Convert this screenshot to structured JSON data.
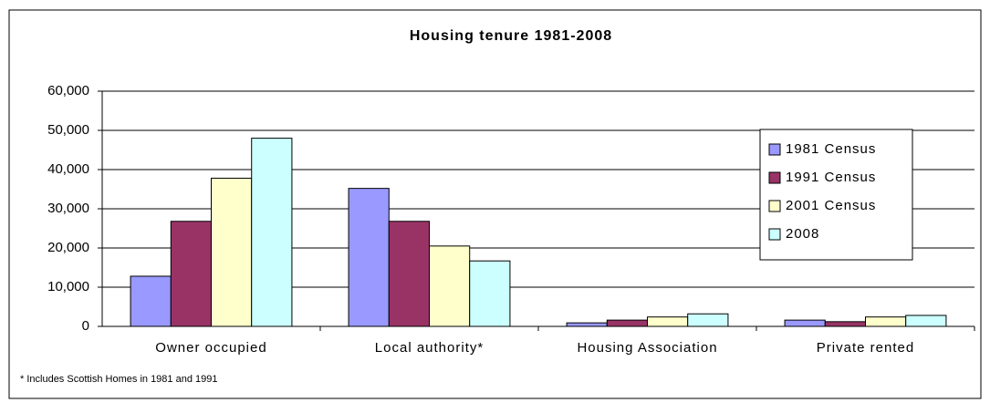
{
  "chart_data": {
    "type": "bar",
    "title": "Housing tenure 1981-2008",
    "categories": [
      "Owner occupied",
      "Local authority*",
      "Housing Association",
      "Private rented"
    ],
    "series": [
      {
        "name": "1981 Census",
        "color": "#9999ff",
        "values": [
          12800,
          35200,
          900,
          1600
        ]
      },
      {
        "name": "1991 Census",
        "color": "#993366",
        "values": [
          26800,
          26800,
          1600,
          1200
        ]
      },
      {
        "name": "2001 Census",
        "color": "#ffffcc",
        "values": [
          37800,
          20500,
          2400,
          2400
        ]
      },
      {
        "name": "2008",
        "color": "#ccffff",
        "values": [
          48000,
          16700,
          3200,
          2800
        ]
      }
    ],
    "ylim": [
      0,
      60000
    ],
    "yticks": [
      0,
      {
        "value": 10000,
        "label": "10,000"
      },
      {
        "value": 20000,
        "label": "20,000"
      },
      {
        "value": 30000,
        "label": "30,000"
      },
      {
        "value": 40000,
        "label": "40,000"
      },
      {
        "value": 50000,
        "label": "50,000"
      },
      {
        "value": 60000,
        "label": "60,000"
      }
    ],
    "grid": true,
    "legend": "right",
    "footnote": "* Includes Scottish Homes in 1981 and 1991"
  }
}
